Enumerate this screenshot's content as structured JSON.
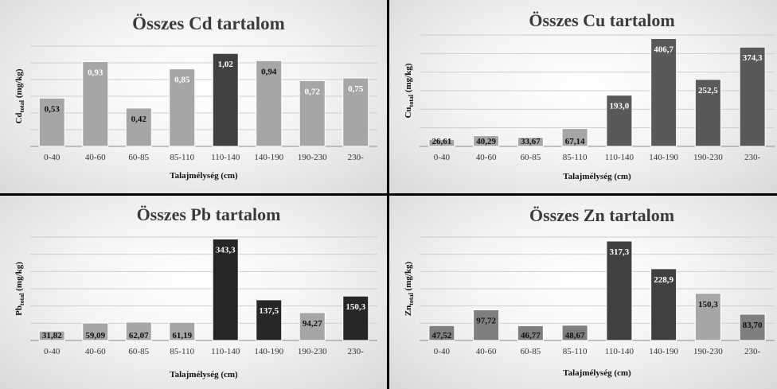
{
  "chart_data": [
    {
      "type": "bar",
      "title": "Összes Cd tartalom",
      "ylabel_main": "Cd",
      "ylabel_sub": "total",
      "ylabel_unit": " (mg/kg)",
      "xlabel": "Talajmélység (cm)",
      "categories": [
        "0-40",
        "40-60",
        "60-85",
        "85-110",
        "110-140",
        "140-190",
        "190-230",
        "230-"
      ],
      "values": [
        0.53,
        0.93,
        0.42,
        0.85,
        1.02,
        0.94,
        0.72,
        0.75
      ],
      "labels": [
        "0,53",
        "0,93",
        "0,42",
        "0,85",
        "1,02",
        "0,94",
        "0,72",
        "0,75"
      ],
      "ylim": [
        0,
        1.1
      ],
      "bar_colors": [
        "#a6a6a6",
        "#a6a6a6",
        "#a6a6a6",
        "#a6a6a6",
        "#404040",
        "#a6a6a6",
        "#a6a6a6",
        "#a6a6a6"
      ],
      "label_colors": [
        "#111111",
        "#ffffff",
        "#111111",
        "#ffffff",
        "#ffffff",
        "#111111",
        "#ffffff",
        "#ffffff"
      ],
      "grid": true
    },
    {
      "type": "bar",
      "title": "Összes Cu tartalom",
      "ylabel_main": "Cu",
      "ylabel_sub": "total",
      "ylabel_unit": " (mg/kg)",
      "xlabel": "Talajmélység (cm)",
      "categories": [
        "0-40",
        "40-60",
        "60-85",
        "85-110",
        "110-140",
        "140-190",
        "190-230",
        "230-"
      ],
      "values": [
        26.61,
        40.29,
        33.67,
        67.14,
        193.0,
        406.7,
        252.5,
        374.3
      ],
      "labels": [
        "26,61",
        "40,29",
        "33,67",
        "67,14",
        "193,0",
        "406,7",
        "252,5",
        "374,3"
      ],
      "ylim": [
        0,
        420
      ],
      "bar_colors": [
        "#a6a6a6",
        "#a6a6a6",
        "#a6a6a6",
        "#a6a6a6",
        "#595959",
        "#595959",
        "#595959",
        "#595959"
      ],
      "label_colors": [
        "#111111",
        "#111111",
        "#111111",
        "#111111",
        "#ffffff",
        "#ffffff",
        "#ffffff",
        "#ffffff"
      ],
      "grid": true
    },
    {
      "type": "bar",
      "title": "Összes Pb tartalom",
      "ylabel_main": "Pb",
      "ylabel_sub": "total",
      "ylabel_unit": " (mg/kg)",
      "xlabel": "Talajmélység (cm)",
      "categories": [
        "0-40",
        "40-60",
        "60-85",
        "85-110",
        "110-140",
        "140-190",
        "190-230",
        "230-"
      ],
      "values": [
        31.82,
        59.09,
        62.07,
        61.19,
        343.3,
        137.5,
        94.27,
        150.3
      ],
      "labels": [
        "31,82",
        "59,09",
        "62,07",
        "61,19",
        "343,3",
        "137,5",
        "94,27",
        "150,3"
      ],
      "ylim": [
        0,
        350
      ],
      "bar_colors": [
        "#a6a6a6",
        "#a6a6a6",
        "#a6a6a6",
        "#a6a6a6",
        "#262626",
        "#262626",
        "#a6a6a6",
        "#262626"
      ],
      "label_colors": [
        "#111111",
        "#111111",
        "#111111",
        "#111111",
        "#ffffff",
        "#ffffff",
        "#111111",
        "#ffffff"
      ],
      "grid": true
    },
    {
      "type": "bar",
      "title": "Összes Zn tartalom",
      "ylabel_main": "Zn",
      "ylabel_sub": "total",
      "ylabel_unit": " (mg/kg)",
      "xlabel": "Talajmélység (cm)",
      "categories": [
        "0-40",
        "40-60",
        "60-85",
        "85-110",
        "110-140",
        "140-190",
        "190-230",
        "230-"
      ],
      "values": [
        47.52,
        97.72,
        46.77,
        48.67,
        317.3,
        228.9,
        150.3,
        83.7
      ],
      "labels": [
        "47,52",
        "97,72",
        "46,77",
        "48,67",
        "317,3",
        "228,9",
        "150,3",
        "83,70"
      ],
      "ylim": [
        0,
        330
      ],
      "bar_colors": [
        "#7f7f7f",
        "#7f7f7f",
        "#7f7f7f",
        "#7f7f7f",
        "#404040",
        "#404040",
        "#a6a6a6",
        "#7f7f7f"
      ],
      "label_colors": [
        "#111111",
        "#111111",
        "#111111",
        "#111111",
        "#ffffff",
        "#ffffff",
        "#111111",
        "#111111"
      ],
      "grid": true
    }
  ]
}
